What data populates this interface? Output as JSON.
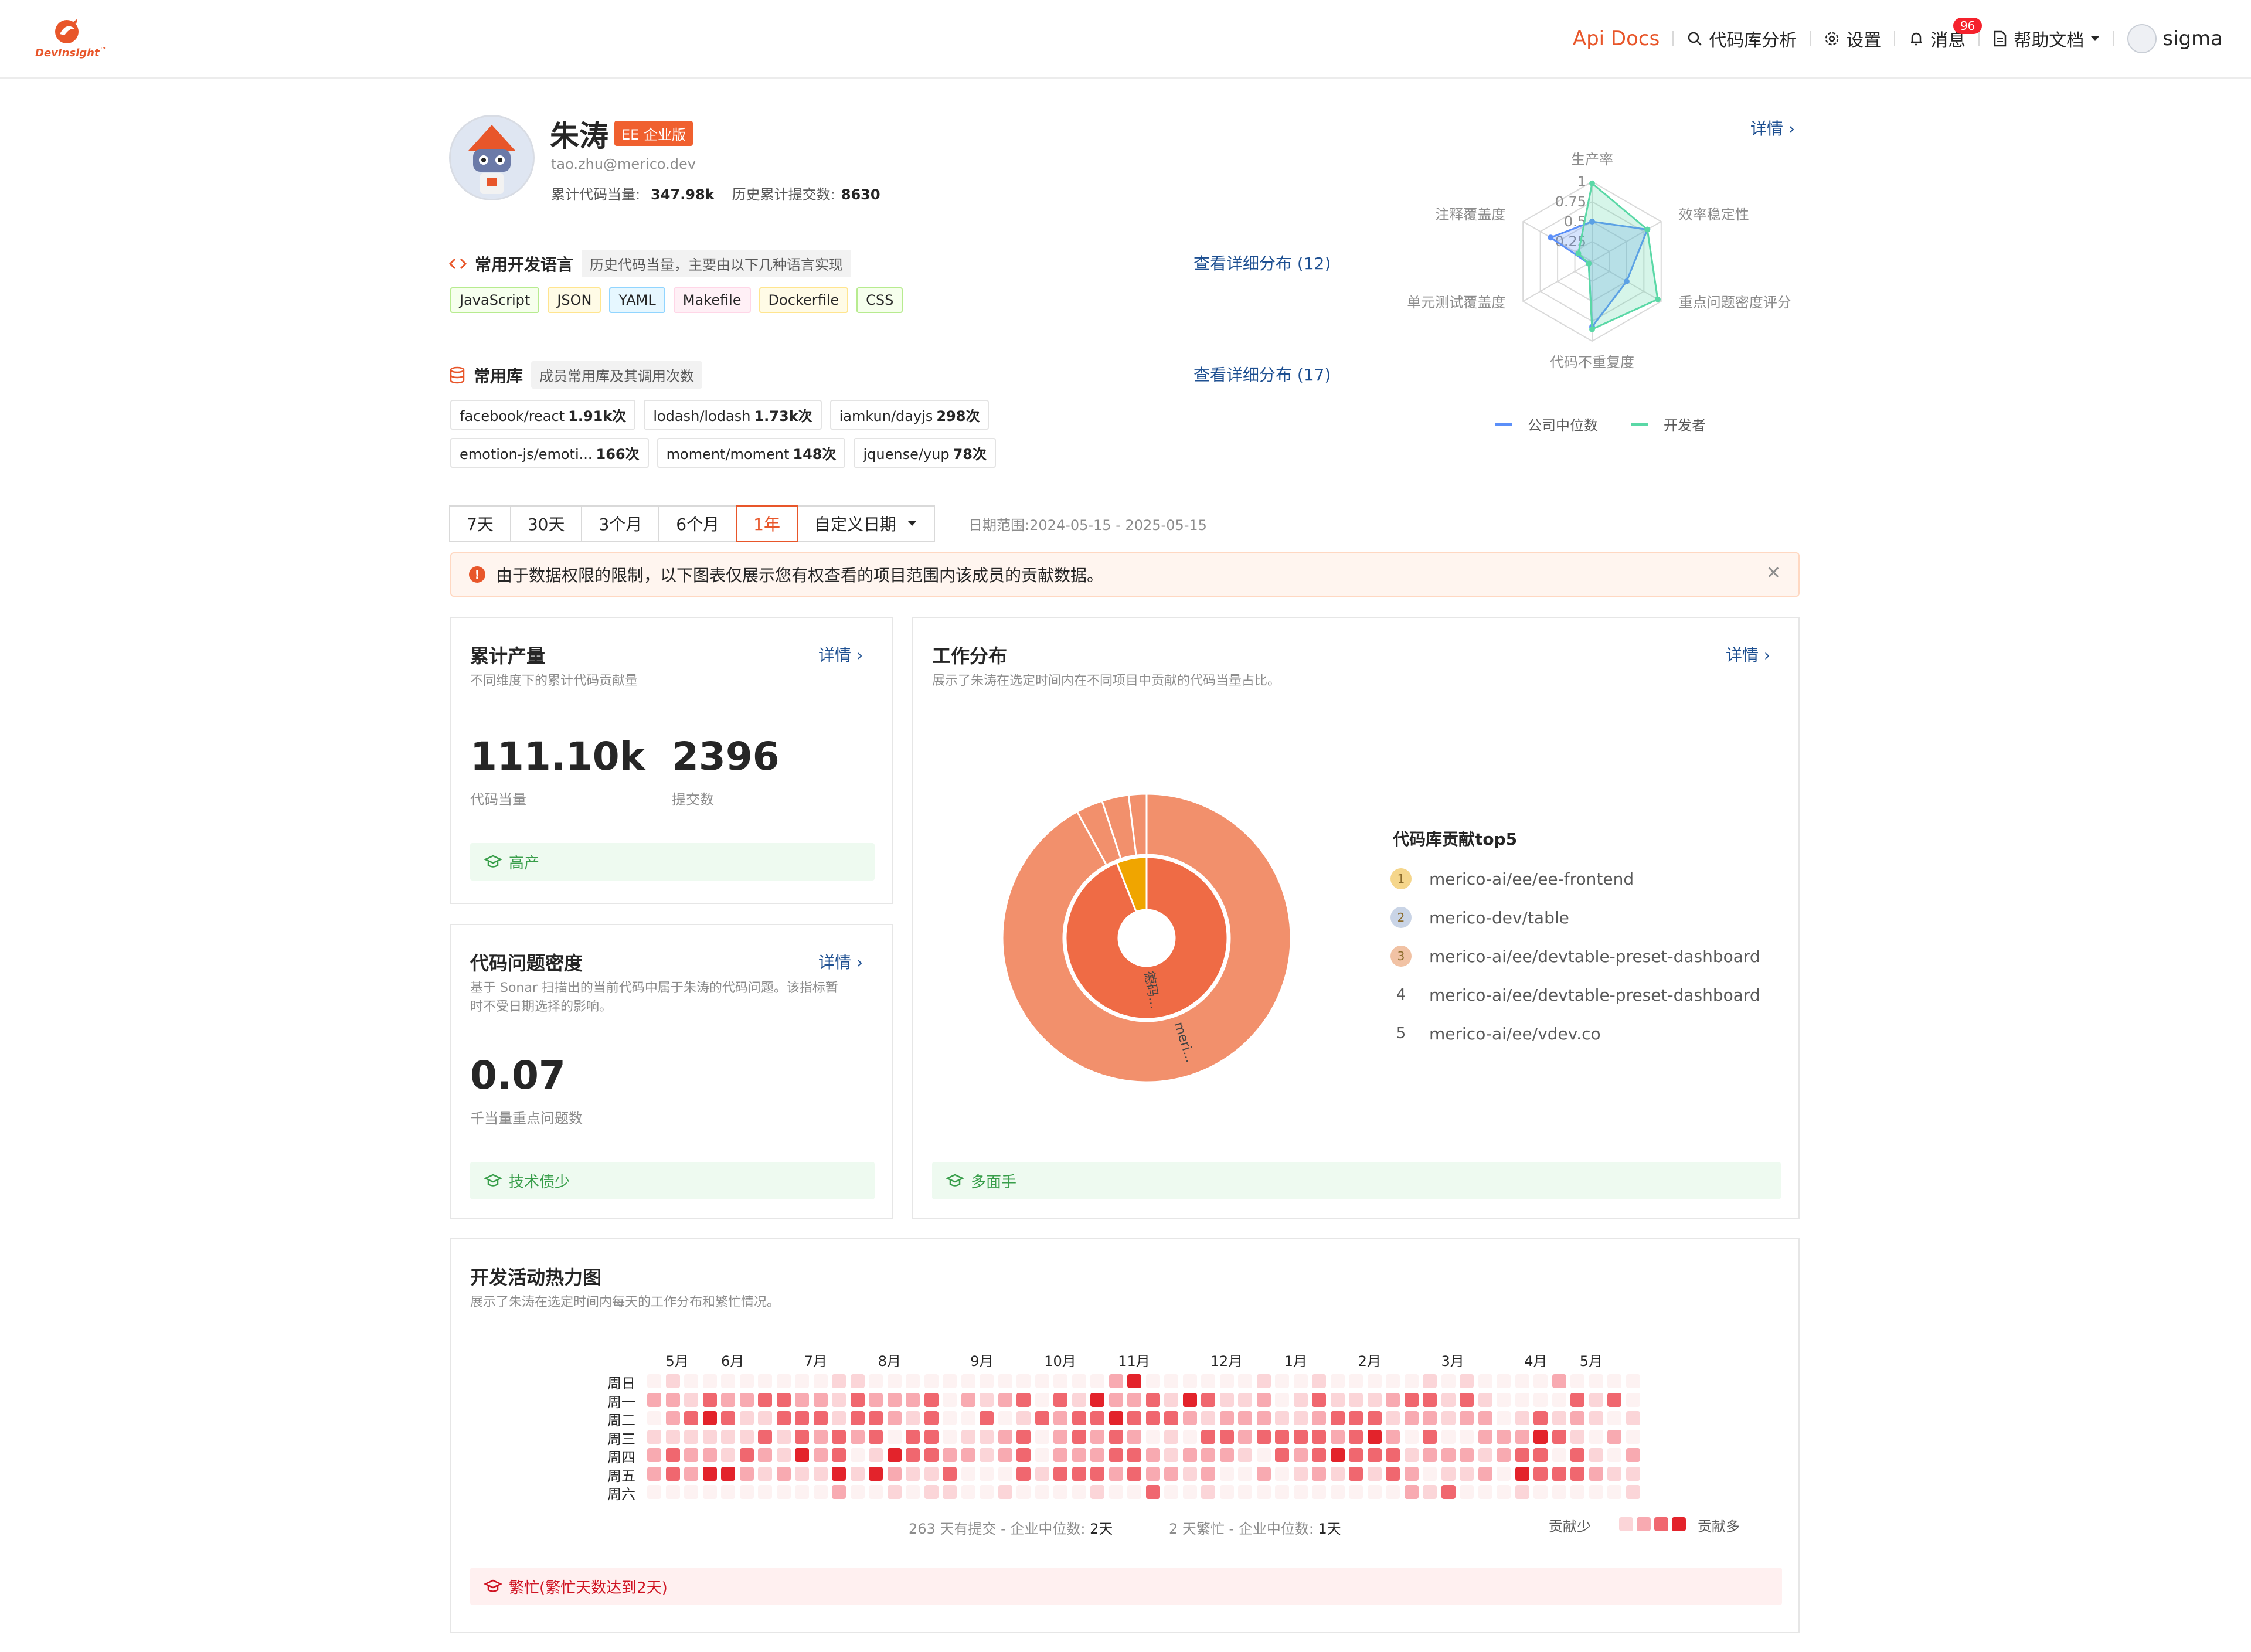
{
  "brand": {
    "name": "DevInsight",
    "tm": "™",
    "accent": "#e8562a"
  },
  "nav": {
    "api_docs": "Api Docs",
    "repo_analysis": "代码库分析",
    "settings": "设置",
    "messages": "消息",
    "messages_badge": "96",
    "help": "帮助文档",
    "user": "sigma"
  },
  "profile": {
    "name": "朱涛",
    "edition": "EE 企业版",
    "email": "tao.zhu@merico.dev",
    "total_equiv_label": "累计代码当量:",
    "total_equiv_value": "347.98k",
    "total_commits_label": "历史累计提交数:",
    "total_commits_value": "8630"
  },
  "languages": {
    "title": "常用开发语言",
    "desc": "历史代码当量，主要由以下几种语言实现",
    "link": "查看详细分布 (12)",
    "items": [
      {
        "label": "JavaScript",
        "bg": "#f6ffed",
        "border": "#b7eb8f"
      },
      {
        "label": "JSON",
        "bg": "#fffbe6",
        "border": "#ffe58f"
      },
      {
        "label": "YAML",
        "bg": "#e6f7ff",
        "border": "#91d5ff"
      },
      {
        "label": "Makefile",
        "bg": "#fff0f6",
        "border": "#ffd6e7"
      },
      {
        "label": "Dockerfile",
        "bg": "#fffbe6",
        "border": "#ffe58f"
      },
      {
        "label": "CSS",
        "bg": "#f6ffed",
        "border": "#b7eb8f"
      }
    ]
  },
  "libraries": {
    "title": "常用库",
    "desc": "成员常用库及其调用次数",
    "link": "查看详细分布 (17)",
    "items": [
      {
        "name": "facebook/react",
        "count": "1.91k次"
      },
      {
        "name": "lodash/lodash",
        "count": "1.73k次"
      },
      {
        "name": "iamkun/dayjs",
        "count": "298次"
      },
      {
        "name": "emotion-js/emoti...",
        "count": "166次"
      },
      {
        "name": "moment/moment",
        "count": "148次"
      },
      {
        "name": "jquense/yup",
        "count": "78次"
      }
    ]
  },
  "radar": {
    "detail": "详情",
    "axes": [
      "生产率",
      "效率稳定性",
      "重点问题密度评分",
      "代码不重复度",
      "单元测试覆盖度",
      "注释覆盖度"
    ],
    "ticks": [
      "1",
      "0.75",
      "0.5",
      "0.25"
    ],
    "series": [
      {
        "name": "公司中位数",
        "color": "#5b8ff9",
        "values": [
          0.5,
          0.8,
          0.5,
          0.82,
          0.05,
          0.6
        ]
      },
      {
        "name": "开发者",
        "color": "#5ad8a6",
        "values": [
          0.98,
          0.8,
          0.95,
          0.85,
          0.05,
          0.2
        ]
      }
    ]
  },
  "range": {
    "options": [
      "7天",
      "30天",
      "3个月",
      "6个月",
      "1年",
      "自定义日期"
    ],
    "active_index": 4,
    "date_range": "日期范围:2024-05-15 - 2025-05-15"
  },
  "alert": {
    "text": "由于数据权限的限制，以下图表仅展示您有权查看的项目范围内该成员的贡献数据。"
  },
  "output_card": {
    "title": "累计产量",
    "desc": "不同维度下的累计代码贡献量",
    "link": "详情",
    "equiv_value": "111.10k",
    "equiv_label": "代码当量",
    "commits_value": "2396",
    "commits_label": "提交数",
    "badge": "高产"
  },
  "density_card": {
    "title": "代码问题密度",
    "desc1": "基于 Sonar 扫描出的当前代码中属于朱涛的代码问题。该指标暂",
    "desc2": "时不受日期选择的影响。",
    "link": "详情",
    "value": "0.07",
    "label": "千当量重点问题数",
    "badge": "技术债少"
  },
  "work_card": {
    "title": "工作分布",
    "desc": "展示了朱涛在选定时间内在不同项目中贡献的代码当量占比。",
    "link": "详情",
    "badge": "多面手",
    "inner_label": "德码...",
    "outer_label": "meri...",
    "top5_title": "代码库贡献top5",
    "top5": [
      {
        "rank": "1",
        "repo": "merico-ai/ee/ee-frontend"
      },
      {
        "rank": "2",
        "repo": "merico-dev/table"
      },
      {
        "rank": "3",
        "repo": "merico-ai/ee/devtable-preset-dashboard"
      },
      {
        "rank": "4",
        "repo": "merico-ai/ee/devtable-preset-dashboard"
      },
      {
        "rank": "5",
        "repo": "merico-ai/ee/vdev.co"
      }
    ]
  },
  "chart_data": {
    "type": "pie",
    "title": "工作分布",
    "rings": [
      {
        "name": "inner",
        "slices": [
          {
            "label": "德码...",
            "value": 0.94,
            "color": "#ef6b45"
          },
          {
            "label": "",
            "value": 0.06,
            "color": "#f0a500"
          }
        ]
      },
      {
        "name": "outer",
        "slices": [
          {
            "label": "meri...",
            "value": 0.92,
            "color": "#f2906c"
          },
          {
            "label": "",
            "value": 0.03,
            "color": "#f2906c"
          },
          {
            "label": "",
            "value": 0.03,
            "color": "#f2906c"
          },
          {
            "label": "",
            "value": 0.02,
            "color": "#f2906c"
          }
        ]
      }
    ]
  },
  "heatmap": {
    "title": "开发活动热力图",
    "desc": "展示了朱涛在选定时间内每天的工作分布和繁忙情况。",
    "months": [
      "5月",
      "6月",
      "7月",
      "8月",
      "9月",
      "10月",
      "11月",
      "12月",
      "1月",
      "2月",
      "3月",
      "4月",
      "5月"
    ],
    "days": [
      "周日",
      "周一",
      "周二",
      "周三",
      "周四",
      "周五",
      "周六"
    ],
    "commit_days_text": "263 天有提交 - 企业中位数: ",
    "commit_days_median": "2天",
    "busy_days_text": "2 天繁忙 - 企业中位数: ",
    "busy_days_median": "1天",
    "legend_low": "贡献少",
    "legend_high": "贡献多",
    "badge": "繁忙(繁忙天数达到2天)",
    "colors": [
      "#fdf2f2",
      "#fbd5d8",
      "#f8aab1",
      "#f0676f",
      "#e3232b"
    ]
  }
}
